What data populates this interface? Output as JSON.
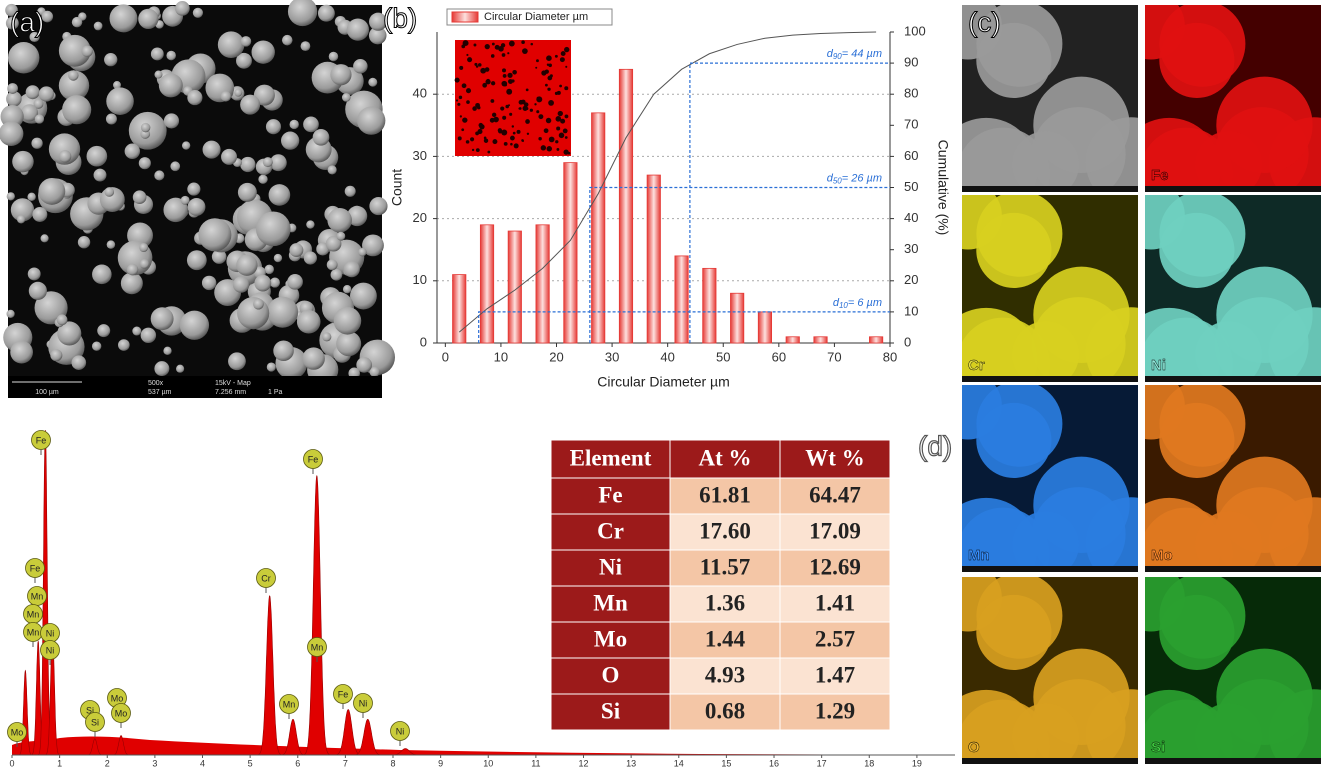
{
  "panel_labels": [
    "(a)",
    "(b)",
    "(c)",
    "(d)"
  ],
  "sem_image": {
    "scale_bar": "100 µm",
    "magnification": "500x",
    "field": "537 µm",
    "conditions": "15kV - Map",
    "distance": "7.256 mm",
    "pressure": "1 Pa"
  },
  "chart_data": [
    {
      "type": "bar",
      "x_label": "Circular Diameter µm",
      "y_label": "Count",
      "y2_label": "Cumulative (%)",
      "x": [
        2.5,
        7.5,
        12.5,
        17.5,
        22.5,
        27.5,
        32.5,
        37.5,
        42.5,
        47.5,
        52.5,
        57.5,
        62.5,
        67.5,
        72.5,
        77.5
      ],
      "series": [
        {
          "name": "Circular Diameter µm",
          "color": "#e53935",
          "values": [
            11,
            19,
            18,
            19,
            29,
            37,
            44,
            27,
            14,
            12,
            8,
            5,
            1,
            1,
            0,
            1
          ]
        }
      ],
      "cumulative": {
        "type": "line",
        "axis": "y2",
        "color": "#555555",
        "values": [
          3.5,
          11,
          17,
          24,
          33,
          48,
          66,
          80,
          88,
          93,
          96,
          98,
          99,
          99.5,
          99.8,
          100
        ]
      },
      "xlim": [
        -1.5,
        80
      ],
      "xticks": [
        0,
        10,
        20,
        30,
        40,
        50,
        60,
        70,
        80
      ],
      "ylim": [
        0,
        50
      ],
      "yticks": [
        0,
        10,
        20,
        30,
        40
      ],
      "y2lim": [
        0,
        100
      ],
      "y2ticks": [
        0,
        10,
        20,
        30,
        40,
        50,
        60,
        70,
        80,
        90,
        100
      ],
      "grid": true,
      "annotations": [
        {
          "symbol": "d",
          "sub": "90",
          "text": "= 44 µm",
          "x": 44,
          "y": 90
        },
        {
          "symbol": "d",
          "sub": "50",
          "text": "= 26 µm",
          "x": 26,
          "y": 50
        },
        {
          "symbol": "d",
          "sub": "10",
          "text": "= 6 µm",
          "x": 6,
          "y": 10
        }
      ],
      "annotation_color": "#2a6fd6"
    },
    {
      "type": "area",
      "color": "#e00000",
      "x": [
        0.28,
        0.55,
        0.7,
        0.85,
        1.74,
        2.29,
        5.41,
        5.9,
        6.4,
        7.06,
        7.47,
        8.26
      ],
      "values": [
        26,
        35,
        100,
        38,
        5,
        6,
        49,
        11,
        86,
        14,
        11,
        2
      ],
      "xlim": [
        0,
        19.8
      ],
      "xticks": [
        0,
        1,
        2,
        3,
        4,
        5,
        6,
        7,
        8,
        9,
        10,
        11,
        12,
        13,
        14,
        15,
        16,
        17,
        18,
        19
      ],
      "ylim": [
        0,
        100
      ],
      "peak_labels": [
        "Mo",
        "Fe",
        "Fe",
        "Mn",
        "Mn",
        "Mn",
        "Ni",
        "Ni",
        "Si",
        "Si",
        "Mo",
        "Mo",
        "Cr",
        "Mn",
        "Fe",
        "Mn",
        "Fe",
        "Ni",
        "Ni"
      ]
    }
  ],
  "table": {
    "header": [
      "Element",
      "At %",
      "Wt %"
    ],
    "rows": [
      [
        "Fe",
        "61.81",
        "64.47"
      ],
      [
        "Cr",
        "17.60",
        "17.09"
      ],
      [
        "Ni",
        "11.57",
        "12.69"
      ],
      [
        "Mn",
        "1.36",
        "1.41"
      ],
      [
        "Mo",
        "1.44",
        "2.57"
      ],
      [
        "O",
        "4.93",
        "1.47"
      ],
      [
        "Si",
        "0.68",
        "1.29"
      ]
    ]
  },
  "maps": {
    "labels": [
      "Fe",
      "Cr",
      "Ni",
      "Mn",
      "Mo",
      "O",
      "Si"
    ]
  }
}
